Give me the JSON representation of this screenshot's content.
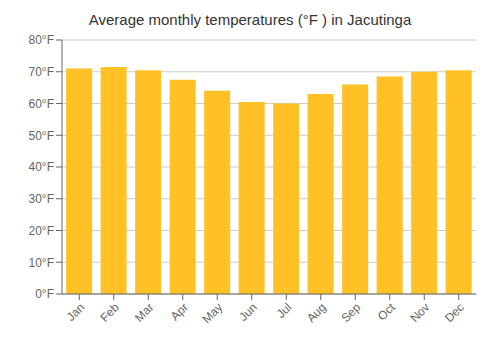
{
  "chart_data": {
    "type": "bar",
    "title": "Average monthly temperatures (°F ) in Jacutinga",
    "categories": [
      "Jan",
      "Feb",
      "Mar",
      "Apr",
      "May",
      "Jun",
      "Jul",
      "Aug",
      "Sep",
      "Oct",
      "Nov",
      "Dec"
    ],
    "values": [
      71,
      71.5,
      70.5,
      67.5,
      64,
      60.5,
      60,
      63,
      66,
      68.5,
      70,
      70.5
    ],
    "color": "#FFC125",
    "ylim": [
      0,
      80
    ],
    "yticks": [
      {
        "value": 0,
        "label": "0°F"
      },
      {
        "value": 10,
        "label": "10°F"
      },
      {
        "value": 20,
        "label": "20°F"
      },
      {
        "value": 30,
        "label": "30°F"
      },
      {
        "value": 40,
        "label": "40°F"
      },
      {
        "value": 50,
        "label": "50°F"
      },
      {
        "value": 60,
        "label": "60°F"
      },
      {
        "value": 70,
        "label": "70°F"
      },
      {
        "value": 80,
        "label": "80°F"
      }
    ],
    "grid": true
  }
}
